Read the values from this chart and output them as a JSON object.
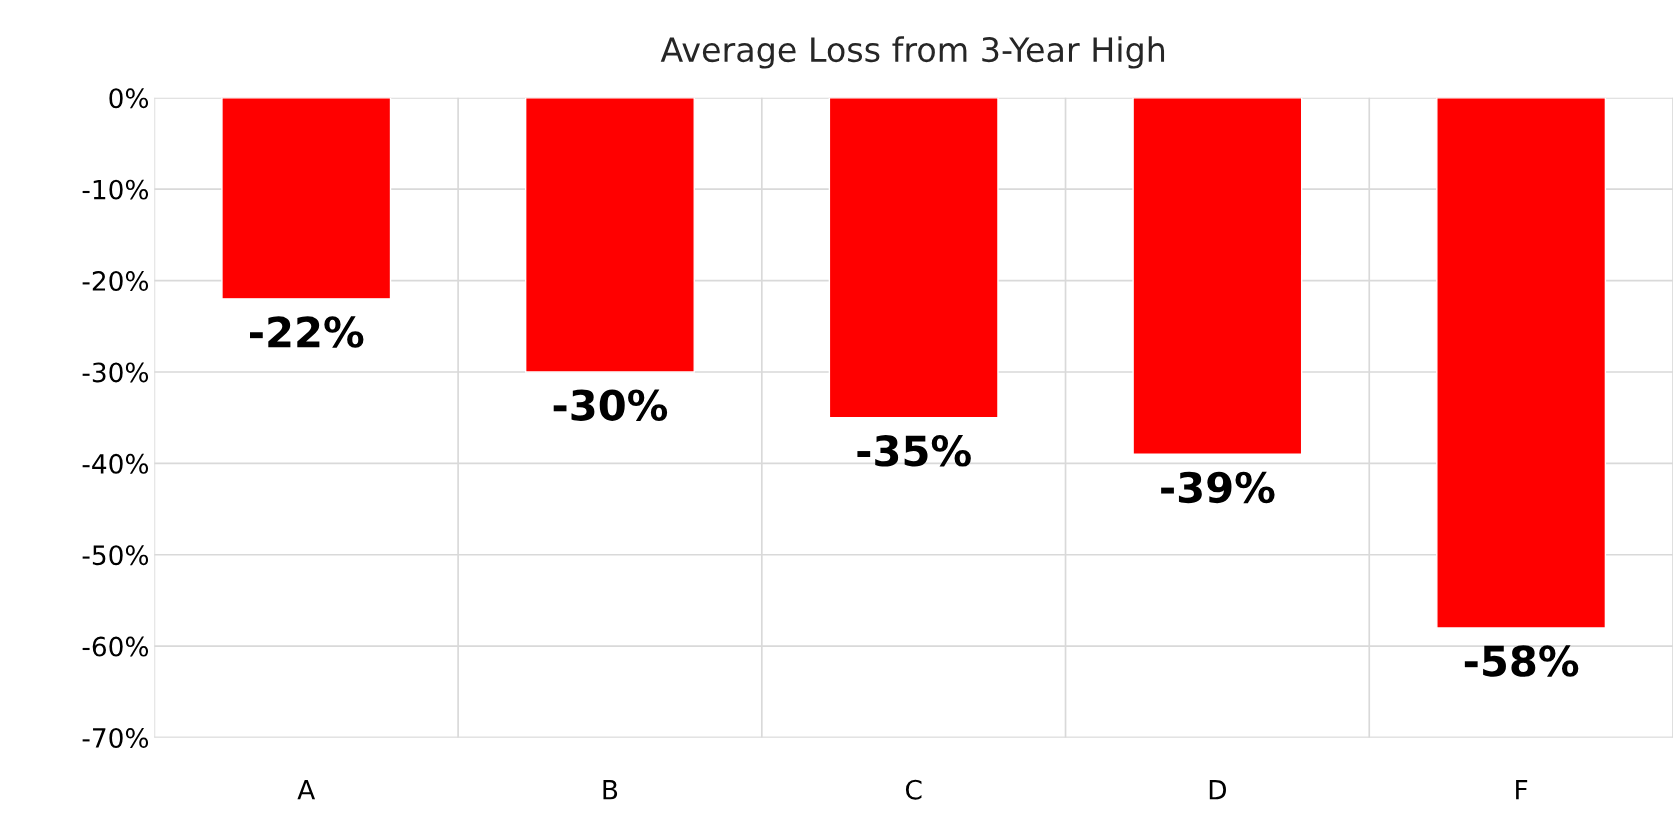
{
  "chart_data": {
    "type": "bar",
    "title": "Average Loss from 3-Year High",
    "categories": [
      "A",
      "B",
      "C",
      "D",
      "F"
    ],
    "values": [
      -22,
      -30,
      -35,
      -39,
      -58
    ],
    "value_labels": [
      "-22%",
      "-30%",
      "-35%",
      "-39%",
      "-58%"
    ],
    "color": "#ff0000",
    "ylim": [
      -70,
      0
    ],
    "yticks": [
      {
        "value": 0,
        "label": "0%"
      },
      {
        "value": -10,
        "label": "-10%"
      },
      {
        "value": -20,
        "label": "-20%"
      },
      {
        "value": -30,
        "label": "-30%"
      },
      {
        "value": -40,
        "label": "-40%"
      },
      {
        "value": -50,
        "label": "-50%"
      },
      {
        "value": -60,
        "label": "-60%"
      },
      {
        "value": -70,
        "label": "-70%"
      }
    ],
    "grid": true,
    "legend": false
  }
}
